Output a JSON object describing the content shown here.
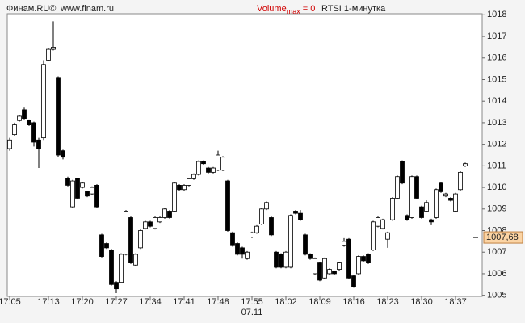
{
  "chart_data": {
    "type": "candlestick",
    "header": {
      "source": "Финам.RU©",
      "url": "www.finam.ru",
      "volume_label": "Volume",
      "volume_sub": "max",
      "volume_value": "= 0",
      "title": "RTSI 1-минутка"
    },
    "date_label": "07.11",
    "categories": [
      "17:05",
      null,
      null,
      null,
      null,
      null,
      null,
      null,
      "17:13",
      null,
      null,
      null,
      null,
      null,
      null,
      "17:20",
      null,
      null,
      null,
      null,
      null,
      null,
      "17:27",
      null,
      null,
      null,
      null,
      null,
      null,
      "17:34",
      null,
      null,
      null,
      null,
      null,
      null,
      "17:41",
      null,
      null,
      null,
      null,
      null,
      null,
      "17:48",
      null,
      null,
      null,
      null,
      null,
      null,
      "17:55",
      null,
      null,
      null,
      null,
      null,
      null,
      "18:02",
      null,
      null,
      null,
      null,
      null,
      null,
      "18:09",
      null,
      null,
      null,
      null,
      null,
      null,
      "18:16",
      null,
      null,
      null,
      null,
      null,
      null,
      "18:23",
      null,
      null,
      null,
      null,
      null,
      null,
      "18:30",
      null,
      null,
      null,
      null,
      null,
      null,
      "18:37",
      null,
      null
    ],
    "open": [
      1011.8,
      1012.45,
      1013.1,
      1013.6,
      1013.1,
      1013.0,
      1012.2,
      1012.3,
      1015.9,
      1016.4,
      1015.1,
      1011.7,
      1010.4,
      1009.1,
      1010.4,
      1010.0,
      1009.8,
      1009.7,
      1010.1,
      1007.8,
      1007.4,
      1007.1,
      1005.6,
      1005.6,
      1006.9,
      1008.6,
      1006.4,
      1007.2,
      1008.1,
      1008.4,
      1008.1,
      1008.4,
      1008.6,
      1008.9,
      1008.9,
      1010.1,
      1009.9,
      1010.1,
      1010.4,
      1010.6,
      1011.2,
      1010.9,
      1010.7,
      1010.8,
      1010.8,
      1010.3,
      1007.9,
      1007.4,
      1007.2,
      1006.7,
      1007.7,
      1007.9,
      1008.3,
      1009.0,
      1008.6,
      1007.0,
      1006.9,
      1006.3,
      1006.3,
      1008.9,
      1008.8,
      1007.8,
      1006.9,
      1006.0,
      1006.5,
      1005.8,
      1006.0,
      1006.1,
      1006.2,
      1007.3,
      1007.6,
      1005.9,
      1006.0,
      1006.8,
      1006.9,
      1007.1,
      1008.2,
      1008.1,
      1007.6,
      1008.5,
      1009.5,
      1011.2,
      1008.7,
      1008.6,
      1010.5,
      1009.1,
      1008.9,
      1008.5,
      1008.6,
      1010.2,
      1009.6,
      1009.5,
      1008.9,
      1009.9,
      1011.0
    ],
    "high": [
      1012.3,
      1013.0,
      1013.35,
      1013.7,
      1013.15,
      1013.05,
      1012.3,
      1015.9,
      1016.45,
      1017.7,
      1015.15,
      1011.75,
      1010.5,
      1010.35,
      1010.45,
      1010.25,
      1009.85,
      1010.05,
      1010.15,
      1007.85,
      1007.45,
      1007.15,
      1005.65,
      1006.95,
      1008.95,
      1008.65,
      1006.95,
      1008.05,
      1008.45,
      1008.45,
      1008.65,
      1008.65,
      1009.05,
      1008.95,
      1010.25,
      1010.15,
      1010.15,
      1010.45,
      1010.65,
      1011.25,
      1011.25,
      1010.95,
      1010.95,
      1011.7,
      1011.45,
      1010.35,
      1007.95,
      1007.45,
      1007.25,
      1007.05,
      1007.95,
      1008.25,
      1009.05,
      1009.35,
      1008.65,
      1007.05,
      1006.95,
      1007.05,
      1008.75,
      1008.95,
      1008.95,
      1007.85,
      1006.95,
      1006.75,
      1006.55,
      1006.75,
      1006.25,
      1006.15,
      1006.55,
      1007.65,
      1007.65,
      1005.95,
      1006.85,
      1006.85,
      1006.95,
      1008.45,
      1008.65,
      1008.55,
      1007.95,
      1009.55,
      1010.55,
      1011.25,
      1008.75,
      1010.55,
      1010.55,
      1009.15,
      1009.4,
      1008.55,
      1009.95,
      1010.25,
      1009.75,
      1009.55,
      1009.75,
      1010.75,
      1011.15
    ],
    "low": [
      1011.7,
      1012.4,
      1013.05,
      1013.15,
      1012.85,
      1011.9,
      1010.9,
      1012.2,
      1015.85,
      1016.35,
      1011.4,
      1011.3,
      1010.05,
      1009.05,
      1009.45,
      1009.95,
      1009.55,
      1009.65,
      1009.05,
      1006.75,
      1007.15,
      1005.45,
      1005.1,
      1005.55,
      1006.85,
      1006.45,
      1006.35,
      1007.15,
      1008.05,
      1008.15,
      1008.05,
      1008.35,
      1008.55,
      1008.55,
      1008.85,
      1009.85,
      1009.85,
      1010.05,
      1010.35,
      1010.55,
      1011.05,
      1010.65,
      1010.65,
      1010.75,
      1010.75,
      1007.95,
      1007.25,
      1006.85,
      1006.7,
      1006.65,
      1007.65,
      1007.85,
      1008.25,
      1008.95,
      1007.75,
      1006.25,
      1006.25,
      1006.25,
      1006.25,
      1008.75,
      1008.45,
      1006.85,
      1006.65,
      1005.95,
      1005.65,
      1005.75,
      1005.95,
      1005.95,
      1006.15,
      1007.25,
      1005.75,
      1005.35,
      1005.95,
      1006.55,
      1006.45,
      1007.05,
      1008.15,
      1008.05,
      1007.2,
      1008.45,
      1009.45,
      1010.15,
      1008.45,
      1008.55,
      1009.45,
      1008.55,
      1008.85,
      1008.25,
      1008.55,
      1009.75,
      1009.55,
      1009.35,
      1008.85,
      1009.85,
      1010.95
    ],
    "close": [
      1012.2,
      1012.9,
      1013.3,
      1013.2,
      1012.9,
      1012.1,
      1011.8,
      1015.7,
      1016.4,
      1016.5,
      1011.5,
      1011.4,
      1010.1,
      1010.3,
      1009.5,
      1010.2,
      1009.6,
      1010.0,
      1009.1,
      1006.8,
      1007.2,
      1005.5,
      1005.3,
      1006.9,
      1008.9,
      1006.5,
      1006.9,
      1008.0,
      1008.4,
      1008.2,
      1008.6,
      1008.6,
      1009.0,
      1008.6,
      1010.2,
      1009.9,
      1010.1,
      1010.4,
      1010.6,
      1011.2,
      1011.1,
      1010.7,
      1010.9,
      1011.5,
      1011.4,
      1008.0,
      1007.3,
      1006.9,
      1006.9,
      1007.0,
      1007.9,
      1008.2,
      1009.0,
      1009.3,
      1007.8,
      1006.3,
      1006.3,
      1007.0,
      1008.7,
      1008.8,
      1008.5,
      1006.9,
      1006.7,
      1006.7,
      1005.7,
      1006.7,
      1006.2,
      1006.0,
      1006.5,
      1007.5,
      1005.8,
      1005.4,
      1006.8,
      1006.6,
      1006.5,
      1008.4,
      1008.6,
      1008.5,
      1007.9,
      1009.5,
      1010.5,
      1010.2,
      1008.5,
      1010.5,
      1009.5,
      1008.6,
      1009.3,
      1008.4,
      1009.9,
      1009.8,
      1009.7,
      1009.4,
      1009.7,
      1010.7,
      1011.1
    ],
    "up_color": "#ffffff",
    "down_color": "#000000",
    "last_price": {
      "value": 1007.68,
      "label": "1007,68"
    },
    "ylim": [
      1004.95,
      1018.05
    ],
    "yticks": [
      1005,
      1006,
      1007,
      1008,
      1009,
      1010,
      1011,
      1012,
      1013,
      1014,
      1015,
      1016,
      1017,
      1018
    ]
  }
}
